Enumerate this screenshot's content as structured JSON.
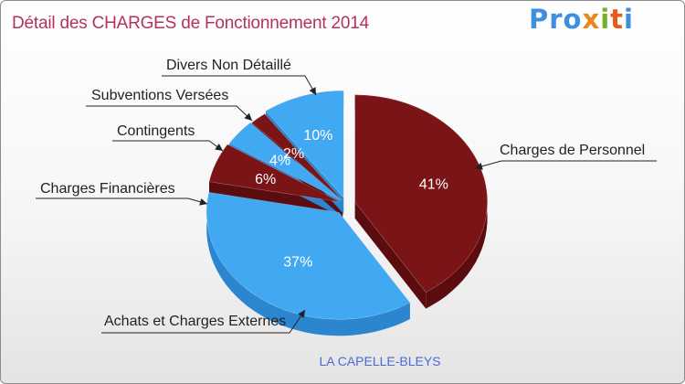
{
  "title": "Détail des CHARGES de Fonctionnement 2014",
  "logo": {
    "parts": [
      "Pro",
      "x",
      "i",
      "t",
      "i"
    ],
    "colors": [
      "#3f8fe0",
      "#e8891a",
      "#77ad2b",
      "#e85a1a",
      "#3f8fe0"
    ]
  },
  "commune": "LA CAPELLE-BLEYS",
  "chart_data": {
    "type": "pie",
    "title": "Détail des CHARGES de Fonctionnement 2014",
    "slices": [
      {
        "label": "Charges de Personnel",
        "value": 41,
        "value_label": "41%",
        "color": "#7b1416",
        "side_color": "#5a0c0e"
      },
      {
        "label": "Achats et Charges Externes",
        "value": 37,
        "value_label": "37%",
        "color": "#41a8f2",
        "side_color": "#2b86cf"
      },
      {
        "label": "Charges Financières",
        "value": 6,
        "value_label": "6%",
        "color": "#7b1416",
        "side_color": "#5a0c0e"
      },
      {
        "label": "Contingents",
        "value": 4,
        "value_label": "4%",
        "color": "#41a8f2",
        "side_color": "#2b86cf"
      },
      {
        "label": "Subventions Versées",
        "value": 2,
        "value_label": "2%",
        "color": "#7b1416",
        "side_color": "#5a0c0e"
      },
      {
        "label": "Divers Non Détaillé",
        "value": 10,
        "value_label": "10%",
        "color": "#41a8f2",
        "side_color": "#2b86cf"
      }
    ]
  }
}
